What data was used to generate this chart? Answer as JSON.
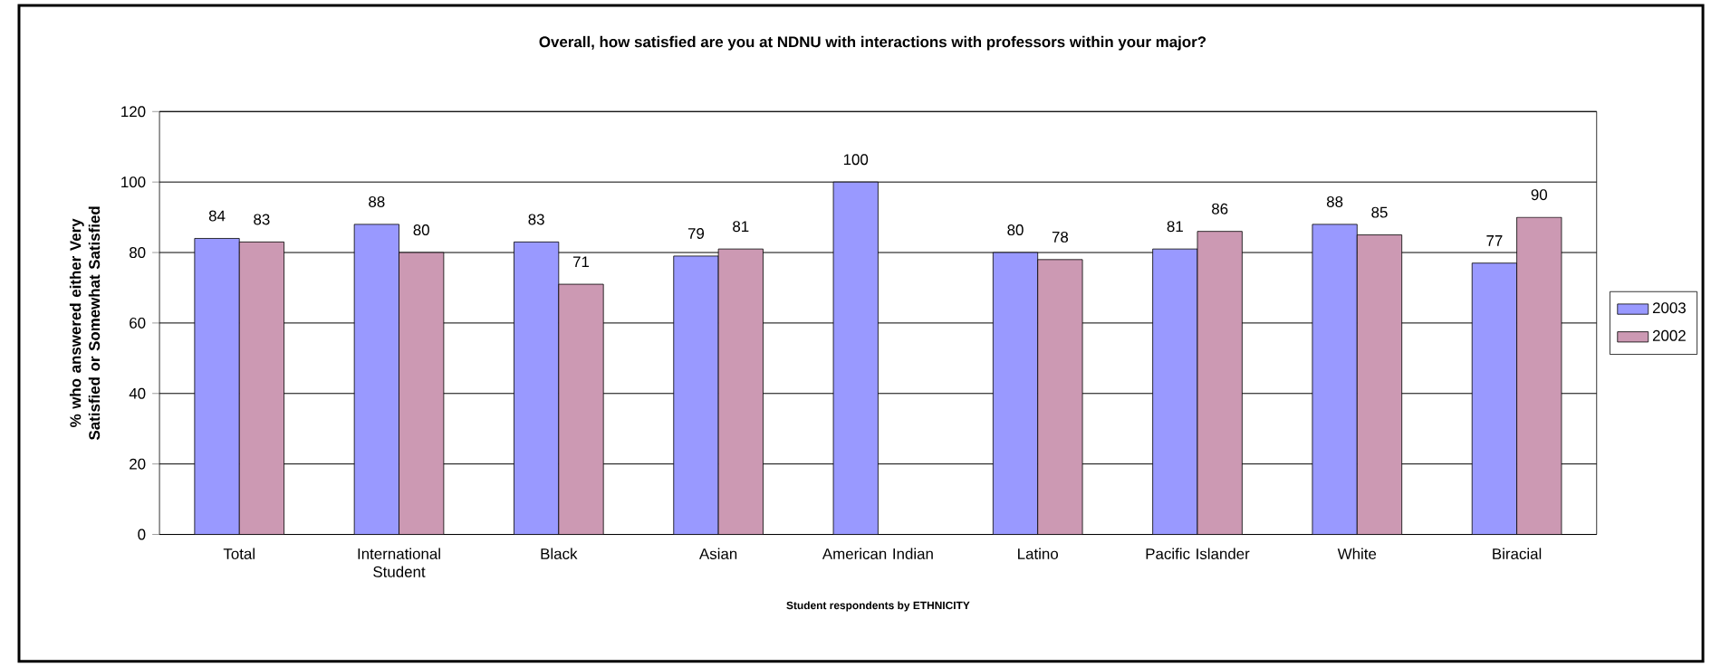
{
  "chart_data": {
    "type": "bar",
    "title": "Overall, how satisfied are you at NDNU with interactions with professors within your major?",
    "xlabel": "Student respondents by ETHNICITY",
    "ylabel": "% who answered either Very Satisfied or Somewhat Satisfied",
    "categories": [
      "Total",
      "International Student",
      "Black",
      "Asian",
      "American Indian",
      "Latino",
      "Pacific Islander",
      "White",
      "Biracial"
    ],
    "series": [
      {
        "name": "2003",
        "color": "#9999ff",
        "values": [
          84,
          88,
          83,
          79,
          100,
          80,
          81,
          88,
          77
        ]
      },
      {
        "name": "2002",
        "color": "#cc99b3",
        "values": [
          83,
          80,
          71,
          81,
          null,
          78,
          86,
          85,
          90
        ]
      }
    ],
    "ylim": [
      0,
      120
    ],
    "yticks": [
      0,
      20,
      40,
      60,
      80,
      100,
      120
    ],
    "grid": "y",
    "legend": "right",
    "data_labels": true
  }
}
